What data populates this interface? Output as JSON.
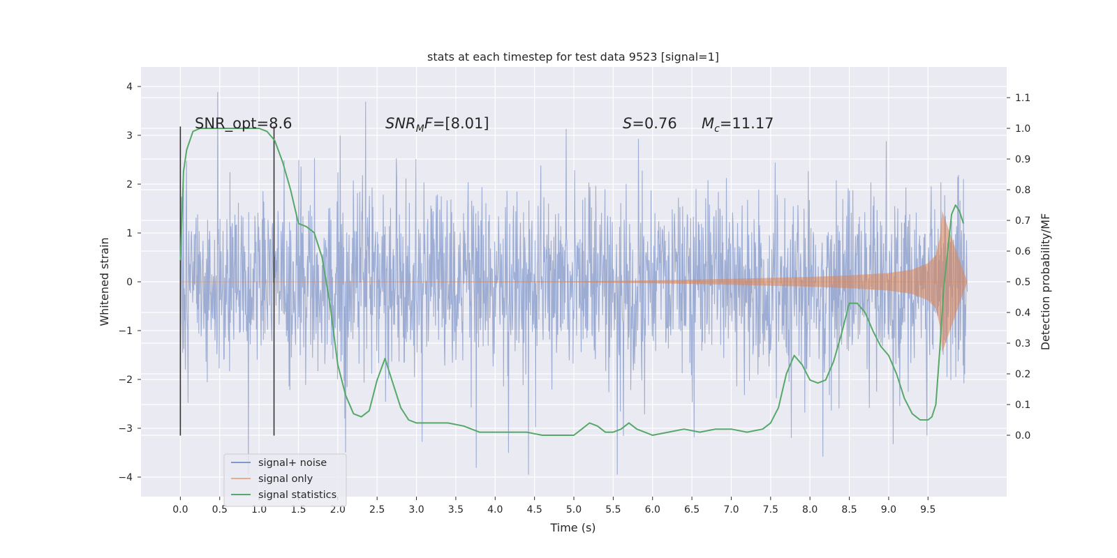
{
  "chart_data": {
    "type": "line",
    "title": "stats at each timestep for test data 9523 [signal=1]",
    "xlabel": "Time (s)",
    "ylabel": "Whitened strain",
    "ylabel_right": "Detection probability/MF",
    "xlim": [
      -0.5,
      10.5
    ],
    "ylim": [
      -4.4,
      4.4
    ],
    "ylim_right": [
      -0.2,
      1.2
    ],
    "xticks": [
      "0.0",
      "0.5",
      "1.0",
      "1.5",
      "2.0",
      "2.5",
      "3.0",
      "3.5",
      "4.0",
      "4.5",
      "5.0",
      "5.5",
      "6.0",
      "6.5",
      "7.0",
      "7.5",
      "8.0",
      "8.5",
      "9.0",
      "9.5"
    ],
    "xtick_values": [
      0.0,
      0.5,
      1.0,
      1.5,
      2.0,
      2.5,
      3.0,
      3.5,
      4.0,
      4.5,
      5.0,
      5.5,
      6.0,
      6.5,
      7.0,
      7.5,
      8.0,
      8.5,
      9.0,
      9.5
    ],
    "yticks": [
      "4",
      "3",
      "2",
      "1",
      "0",
      "−1",
      "−2",
      "−3",
      "−4"
    ],
    "ytick_values": [
      4,
      3,
      2,
      1,
      0,
      -1,
      -2,
      -3,
      -4
    ],
    "yticks_right": [
      "1.1",
      "1.0",
      "0.9",
      "0.8",
      "0.7",
      "0.6",
      "0.5",
      "0.4",
      "0.3",
      "0.2",
      "0.1",
      "0.0"
    ],
    "ytick_right_values": [
      1.1,
      1.0,
      0.9,
      0.8,
      0.7,
      0.6,
      0.5,
      0.4,
      0.3,
      0.2,
      0.1,
      0.0
    ],
    "grid": true,
    "legend_position": "bottom-left",
    "series": [
      {
        "name": "signal+ noise",
        "color": "#8197c8",
        "axis": "left",
        "description_envelope": {
          "x": [
            0.0,
            10.0
          ],
          "typical_amplitude": 1.3,
          "peak_max": 4.05,
          "peak_min": -3.95
        }
      },
      {
        "name": "signal only",
        "color": "#dd8452",
        "axis": "left",
        "envelope": {
          "x": [
            0.0,
            5.0,
            6.0,
            7.0,
            8.0,
            8.5,
            9.0,
            9.3,
            9.5,
            9.6,
            9.65,
            9.68,
            10.0
          ],
          "amp": [
            0.0,
            0.01,
            0.03,
            0.06,
            0.1,
            0.13,
            0.18,
            0.25,
            0.38,
            0.55,
            0.9,
            1.45,
            0.0
          ]
        }
      },
      {
        "name": "signal statistics",
        "color": "#55a868",
        "axis": "right",
        "x": [
          0.0,
          0.04,
          0.08,
          0.12,
          0.16,
          0.25,
          0.35,
          0.5,
          0.7,
          0.9,
          1.0,
          1.1,
          1.2,
          1.3,
          1.4,
          1.5,
          1.6,
          1.7,
          1.8,
          1.9,
          2.0,
          2.1,
          2.2,
          2.3,
          2.4,
          2.5,
          2.6,
          2.7,
          2.8,
          2.9,
          3.0,
          3.2,
          3.4,
          3.6,
          3.8,
          4.0,
          4.2,
          4.4,
          4.6,
          4.8,
          5.0,
          5.1,
          5.2,
          5.3,
          5.4,
          5.5,
          5.6,
          5.7,
          5.8,
          5.9,
          6.0,
          6.2,
          6.4,
          6.6,
          6.8,
          7.0,
          7.2,
          7.4,
          7.5,
          7.6,
          7.7,
          7.8,
          7.9,
          8.0,
          8.1,
          8.2,
          8.3,
          8.4,
          8.5,
          8.6,
          8.7,
          8.8,
          8.9,
          9.0,
          9.1,
          9.2,
          9.3,
          9.4,
          9.5,
          9.55,
          9.6,
          9.65,
          9.7,
          9.8,
          9.85,
          9.9,
          9.95
        ],
        "values": [
          0.57,
          0.86,
          0.93,
          0.96,
          0.99,
          1.0,
          1.0,
          1.0,
          1.0,
          1.0,
          1.0,
          0.99,
          0.96,
          0.89,
          0.8,
          0.69,
          0.68,
          0.66,
          0.58,
          0.43,
          0.23,
          0.13,
          0.07,
          0.06,
          0.08,
          0.18,
          0.25,
          0.17,
          0.09,
          0.05,
          0.04,
          0.04,
          0.04,
          0.03,
          0.01,
          0.01,
          0.01,
          0.01,
          0.0,
          0.0,
          0.0,
          0.02,
          0.04,
          0.03,
          0.01,
          0.01,
          0.02,
          0.04,
          0.02,
          0.01,
          0.0,
          0.01,
          0.02,
          0.01,
          0.02,
          0.02,
          0.01,
          0.02,
          0.04,
          0.09,
          0.2,
          0.26,
          0.23,
          0.18,
          0.17,
          0.18,
          0.24,
          0.33,
          0.43,
          0.43,
          0.4,
          0.34,
          0.29,
          0.26,
          0.2,
          0.12,
          0.07,
          0.05,
          0.05,
          0.06,
          0.1,
          0.28,
          0.48,
          0.72,
          0.75,
          0.73,
          0.69
        ]
      }
    ],
    "vlines": [
      {
        "x": 0.0,
        "color": "#333333"
      },
      {
        "x": 1.19,
        "color": "#333333"
      }
    ],
    "annotations": [
      {
        "id": "snr_opt",
        "text": "SNR_opt=8.6",
        "x": 0.2,
        "y": 3.2
      },
      {
        "id": "snr_mf",
        "text": "SNR_MF=[8.01]",
        "x": 2.6,
        "y": 3.2
      },
      {
        "id": "s_val",
        "text": "S=0.76",
        "x": 5.6,
        "y": 3.2
      },
      {
        "id": "mc_val",
        "text": "M_c=11.17",
        "x": 6.6,
        "y": 3.2
      }
    ],
    "legend": [
      "signal+ noise",
      "signal only",
      "signal statistics"
    ]
  }
}
